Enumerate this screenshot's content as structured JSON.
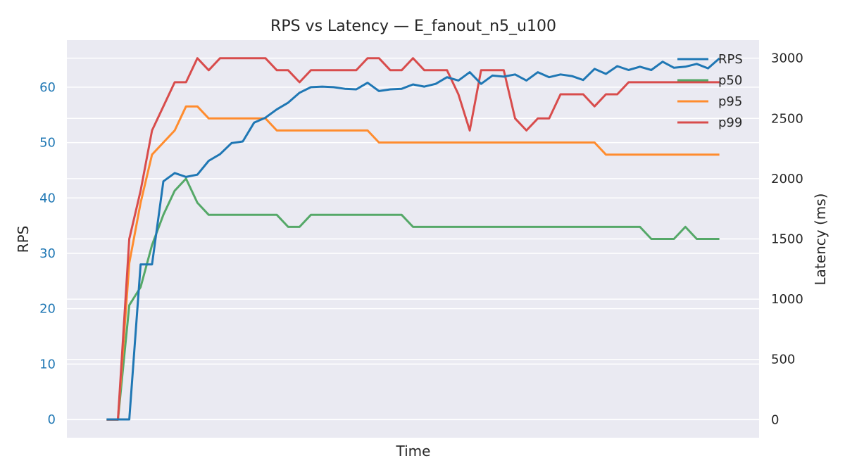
{
  "chart_data": {
    "type": "line",
    "title": "RPS vs Latency — E_fanout_n5_u100",
    "xlabel": "Time",
    "ylabel_left": "RPS",
    "ylabel_right": "Latency (ms)",
    "ylim_left": [
      -3.3,
      68.5
    ],
    "ylim_right": [
      -150,
      3150
    ],
    "yticks_left": [
      "0",
      "10",
      "20",
      "30",
      "40",
      "50",
      "60"
    ],
    "yticks_right": [
      "0",
      "500",
      "1000",
      "1500",
      "2000",
      "2500",
      "3000"
    ],
    "xlim": [
      -3.5,
      57.5
    ],
    "grid": true,
    "background": "#eaeaf2",
    "legend_position": "top-right",
    "x": [
      0,
      1,
      2,
      3,
      4,
      5,
      6,
      7,
      8,
      9,
      10,
      11,
      12,
      13,
      14,
      15,
      16,
      17,
      18,
      19,
      20,
      21,
      22,
      23,
      24,
      25,
      26,
      27,
      28,
      29,
      30,
      31,
      32,
      33,
      34,
      35,
      36,
      37,
      38,
      39,
      40,
      41,
      42,
      43,
      44,
      45,
      46,
      47,
      48,
      49,
      50,
      51,
      52,
      53,
      54
    ],
    "series": [
      {
        "name": "RPS",
        "axis": "left",
        "color": "#1f77b4",
        "values": [
          0,
          0,
          0,
          28,
          28,
          43,
          44.5,
          43.8,
          44.2,
          46.7,
          47.9,
          49.9,
          50.2,
          53.6,
          54.5,
          56,
          57.2,
          59,
          60,
          60.1,
          60,
          59.7,
          59.6,
          60.8,
          59.3,
          59.6,
          59.7,
          60.5,
          60.1,
          60.6,
          61.8,
          61.2,
          62.7,
          60.6,
          62.1,
          61.9,
          62.3,
          61.2,
          62.7,
          61.8,
          62.3,
          62,
          61.3,
          63.3,
          62.4,
          63.8,
          63.1,
          63.7,
          63.1,
          64.6,
          63.5,
          63.7,
          64.2,
          63.4,
          65.2
        ]
      },
      {
        "name": "p50",
        "axis": "right",
        "color": "#55a868",
        "values": [
          0,
          0,
          950,
          1100,
          1450,
          1700,
          1900,
          2000,
          1800,
          1700,
          1700,
          1700,
          1700,
          1700,
          1700,
          1700,
          1600,
          1600,
          1700,
          1700,
          1700,
          1700,
          1700,
          1700,
          1700,
          1700,
          1700,
          1600,
          1600,
          1600,
          1600,
          1600,
          1600,
          1600,
          1600,
          1600,
          1600,
          1600,
          1600,
          1600,
          1600,
          1600,
          1600,
          1600,
          1600,
          1600,
          1600,
          1600,
          1500,
          1500,
          1500,
          1600,
          1500,
          1500,
          1500
        ]
      },
      {
        "name": "p95",
        "axis": "right",
        "color": "#ff8c2e",
        "values": [
          0,
          0,
          1300,
          1800,
          2200,
          2300,
          2400,
          2600,
          2600,
          2500,
          2500,
          2500,
          2500,
          2500,
          2500,
          2400,
          2400,
          2400,
          2400,
          2400,
          2400,
          2400,
          2400,
          2400,
          2300,
          2300,
          2300,
          2300,
          2300,
          2300,
          2300,
          2300,
          2300,
          2300,
          2300,
          2300,
          2300,
          2300,
          2300,
          2300,
          2300,
          2300,
          2300,
          2300,
          2200,
          2200,
          2200,
          2200,
          2200,
          2200,
          2200,
          2200,
          2200,
          2200,
          2200
        ]
      },
      {
        "name": "p99",
        "axis": "right",
        "color": "#d84c4c",
        "values": [
          0,
          0,
          1500,
          1900,
          2400,
          2600,
          2800,
          2800,
          3000,
          2900,
          3000,
          3000,
          3000,
          3000,
          3000,
          2900,
          2900,
          2800,
          2900,
          2900,
          2900,
          2900,
          2900,
          3000,
          3000,
          2900,
          2900,
          3000,
          2900,
          2900,
          2900,
          2700,
          2400,
          2900,
          2900,
          2900,
          2500,
          2400,
          2500,
          2500,
          2700,
          2700,
          2700,
          2600,
          2700,
          2700,
          2800,
          2800,
          2800,
          2800,
          2800,
          2800,
          2800,
          2800,
          2800
        ]
      }
    ]
  }
}
